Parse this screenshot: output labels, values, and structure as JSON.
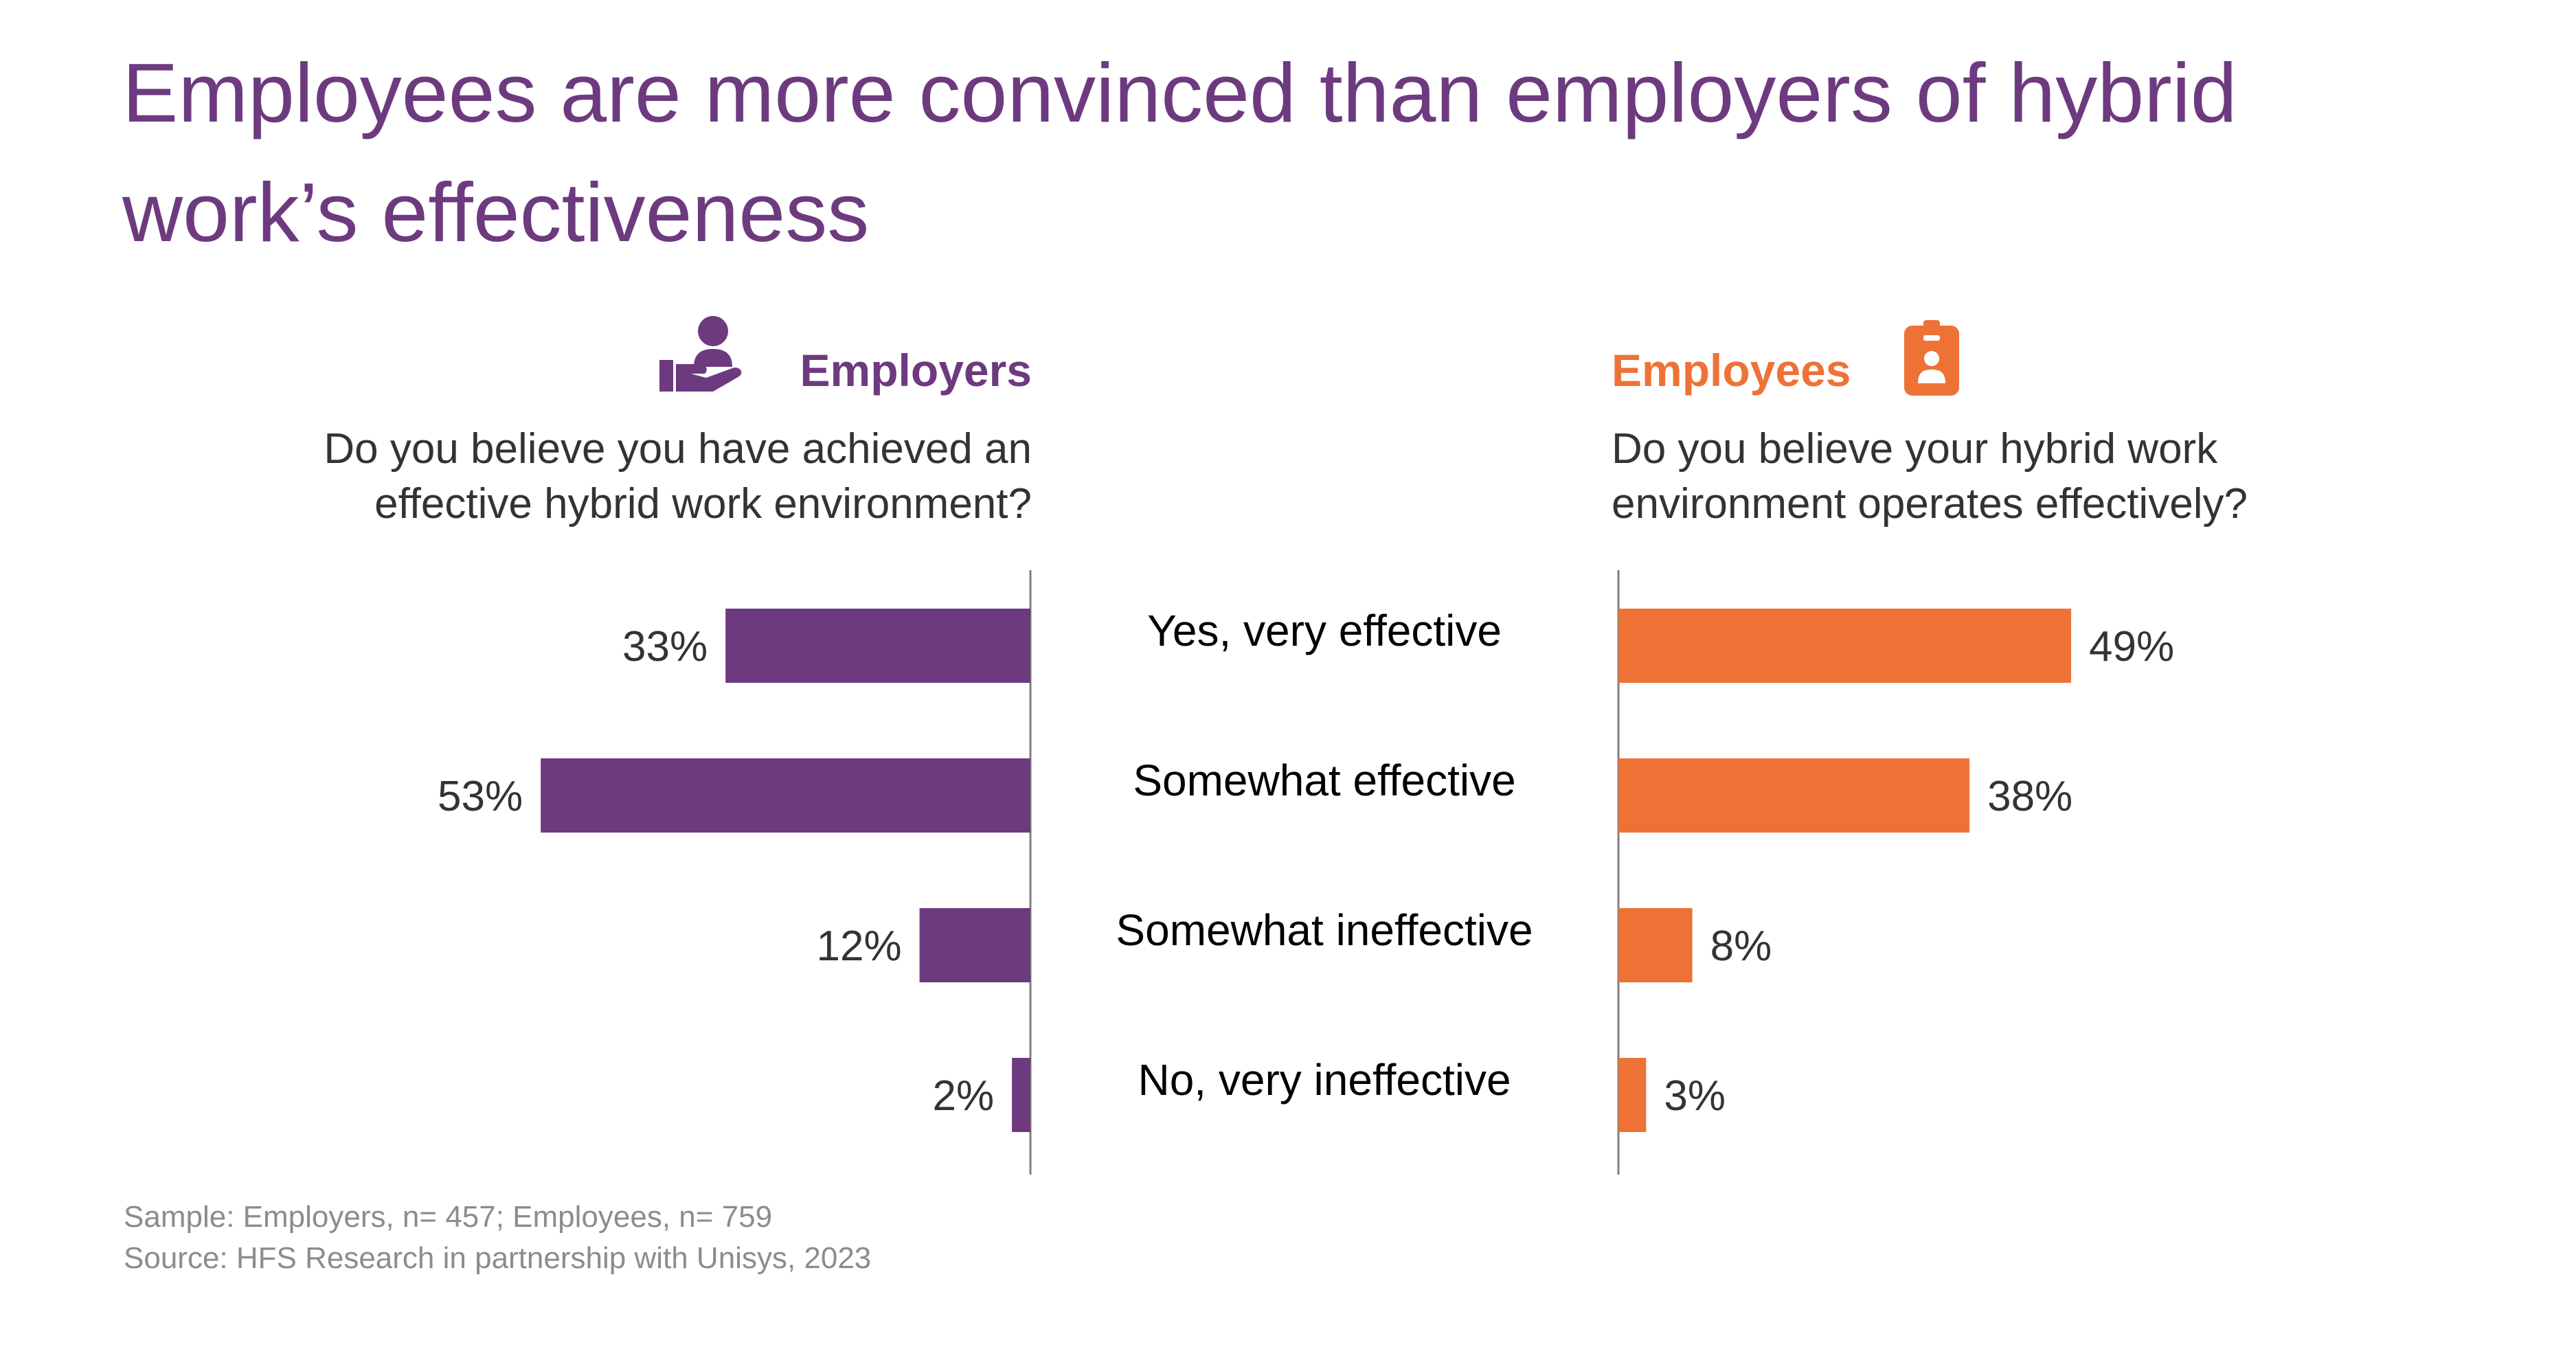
{
  "title": "Employees are more convinced than employers of hybrid work’s effectiveness",
  "employers": {
    "header": "Employers",
    "question": "Do you believe you have achieved an\neffective hybrid work environment?",
    "icon": "hand-holding-person-icon",
    "color": "#6d3a7f"
  },
  "employees": {
    "header": "Employees",
    "question": "Do you believe your hybrid work\nenvironment operates effectively?",
    "icon": "id-badge-icon",
    "color": "#ee7236"
  },
  "chart_data": {
    "type": "bar",
    "orientation": "horizontal-butterfly",
    "categories": [
      "Yes, very effective",
      "Somewhat effective",
      "Somewhat ineffective",
      "No, very ineffective"
    ],
    "series": [
      {
        "name": "Employers",
        "values": [
          33,
          53,
          12,
          2
        ],
        "labels": [
          "33%",
          "53%",
          "12%",
          "2%"
        ],
        "color": "#6d3a7f"
      },
      {
        "name": "Employees",
        "values": [
          49,
          38,
          8,
          3
        ],
        "labels": [
          "49%",
          "38%",
          "8%",
          "3%"
        ],
        "color": "#ee7236"
      }
    ],
    "xlim": [
      0,
      100
    ],
    "grid": false,
    "legend": "none"
  },
  "footnotes": {
    "sample": "Sample: Employers, n= 457; Employees, n= 759",
    "source": "Source: HFS Research in partnership with Unisys, 2023"
  }
}
